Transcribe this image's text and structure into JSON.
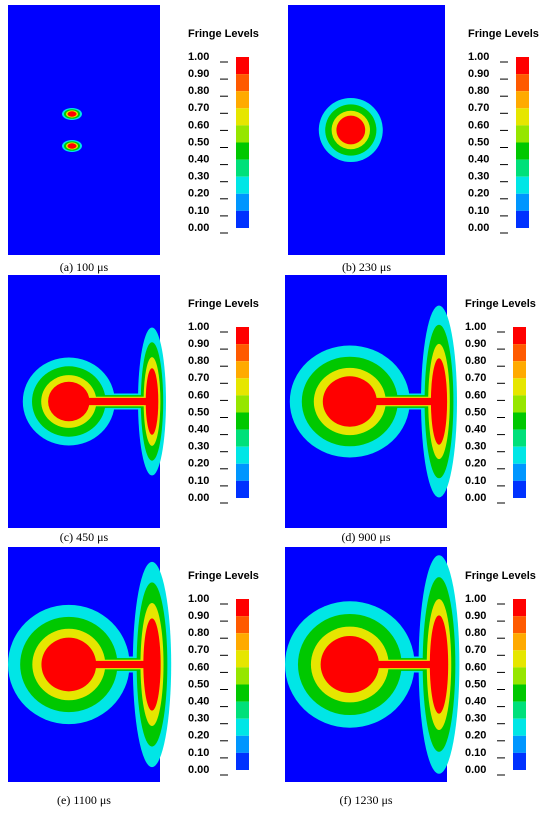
{
  "panels": [
    {
      "caption": "(a) 100 μs",
      "legend_title": "Fringe Levels",
      "levels": [
        "1.00",
        "0.90",
        "0.80",
        "0.70",
        "0.60",
        "0.50",
        "0.40",
        "0.30",
        "0.20",
        "0.10",
        "0.00"
      ]
    },
    {
      "caption": "(b) 230 μs",
      "legend_title": "Fringe Levels",
      "levels": [
        "1.00",
        "0.90",
        "0.80",
        "0.70",
        "0.60",
        "0.50",
        "0.40",
        "0.30",
        "0.20",
        "0.10",
        "0.00"
      ]
    },
    {
      "caption": "(c) 450 μs",
      "legend_title": "Fringe Levels",
      "levels": [
        "1.00",
        "0.90",
        "0.80",
        "0.70",
        "0.60",
        "0.50",
        "0.40",
        "0.30",
        "0.20",
        "0.10",
        "0.00"
      ]
    },
    {
      "caption": "(d) 900 μs",
      "legend_title": "Fringe Levels",
      "levels": [
        "1.00",
        "0.90",
        "0.80",
        "0.70",
        "0.60",
        "0.50",
        "0.40",
        "0.30",
        "0.20",
        "0.10",
        "0.00"
      ]
    },
    {
      "caption": "(e) 1100 μs",
      "legend_title": "Fringe Levels",
      "levels": [
        "1.00",
        "0.90",
        "0.80",
        "0.70",
        "0.60",
        "0.50",
        "0.40",
        "0.30",
        "0.20",
        "0.10",
        "0.00"
      ]
    },
    {
      "caption": "(f) 1230 μs",
      "legend_title": "Fringe Levels",
      "levels": [
        "1.00",
        "0.90",
        "0.80",
        "0.70",
        "0.60",
        "0.50",
        "0.40",
        "0.30",
        "0.20",
        "0.10",
        "0.00"
      ]
    }
  ]
}
